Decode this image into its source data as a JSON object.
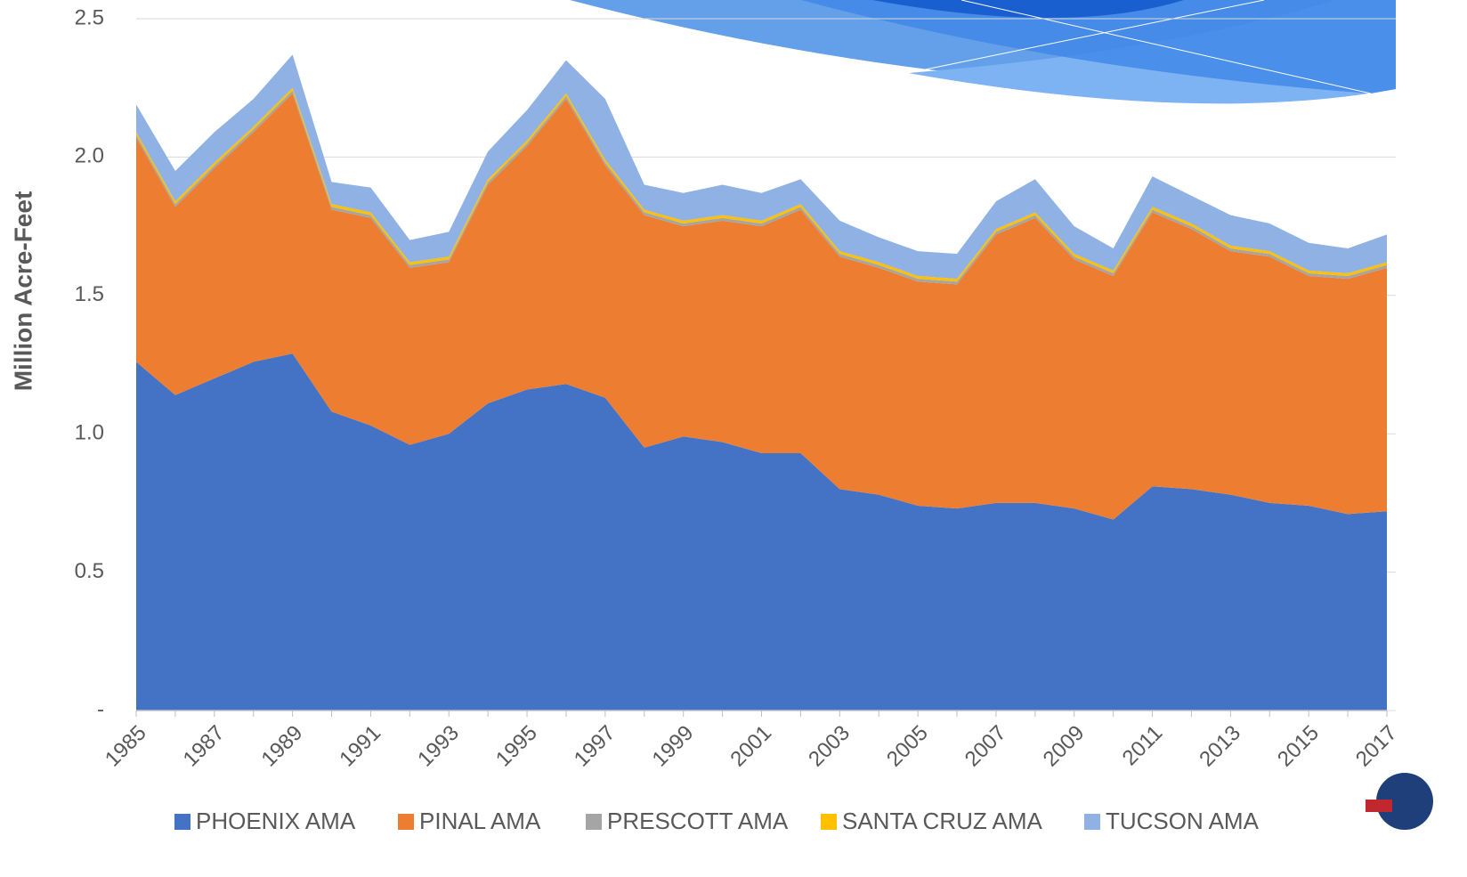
{
  "chart_data": {
    "type": "stacked-area",
    "y_label": "Million Acre-Feet",
    "categories": [
      "1985",
      null,
      "1987",
      null,
      "1989",
      null,
      "1991",
      null,
      "1993",
      null,
      "1995",
      null,
      "1997",
      null,
      "1999",
      null,
      "2001",
      null,
      "2003",
      null,
      "2005",
      null,
      "2007",
      null,
      "2009",
      null,
      "2011",
      null,
      "2013",
      null,
      "2015",
      null,
      "2017"
    ],
    "series": [
      {
        "name": "PHOENIX AMA",
        "color": "#4472c4",
        "values": [
          1.26,
          1.14,
          1.2,
          1.26,
          1.29,
          1.08,
          1.03,
          0.96,
          1.0,
          1.11,
          1.16,
          1.18,
          1.13,
          0.95,
          0.99,
          0.97,
          0.93,
          0.93,
          0.8,
          0.78,
          0.74,
          0.73,
          0.75,
          0.75,
          0.73,
          0.69,
          0.81,
          0.8,
          0.78,
          0.75,
          0.74,
          0.71,
          0.72
        ]
      },
      {
        "name": "PINAL AMA",
        "color": "#ed7d31",
        "values": [
          0.81,
          0.68,
          0.76,
          0.83,
          0.94,
          0.73,
          0.75,
          0.64,
          0.62,
          0.79,
          0.88,
          1.03,
          0.84,
          0.84,
          0.76,
          0.8,
          0.82,
          0.88,
          0.84,
          0.82,
          0.81,
          0.81,
          0.97,
          1.03,
          0.9,
          0.88,
          0.99,
          0.94,
          0.88,
          0.89,
          0.83,
          0.85,
          0.88
        ]
      },
      {
        "name": "PRESCOTT AMA",
        "color": "#a5a5a5",
        "values": [
          0.01,
          0.01,
          0.01,
          0.01,
          0.01,
          0.01,
          0.01,
          0.01,
          0.01,
          0.01,
          0.01,
          0.01,
          0.01,
          0.01,
          0.01,
          0.01,
          0.01,
          0.01,
          0.01,
          0.01,
          0.01,
          0.01,
          0.01,
          0.01,
          0.01,
          0.01,
          0.01,
          0.01,
          0.01,
          0.01,
          0.01,
          0.01,
          0.01
        ]
      },
      {
        "name": "SANTA CRUZ AMA",
        "color": "#ffc000",
        "values": [
          0.01,
          0.01,
          0.01,
          0.01,
          0.01,
          0.01,
          0.01,
          0.01,
          0.01,
          0.01,
          0.01,
          0.01,
          0.01,
          0.01,
          0.01,
          0.01,
          0.01,
          0.01,
          0.01,
          0.01,
          0.01,
          0.01,
          0.01,
          0.01,
          0.01,
          0.01,
          0.01,
          0.01,
          0.01,
          0.01,
          0.01,
          0.01,
          0.01
        ]
      },
      {
        "name": "TUCSON AMA",
        "color": "#8fb1e3",
        "values": [
          0.1,
          0.11,
          0.11,
          0.1,
          0.12,
          0.08,
          0.09,
          0.08,
          0.09,
          0.1,
          0.11,
          0.12,
          0.22,
          0.09,
          0.1,
          0.11,
          0.1,
          0.09,
          0.11,
          0.09,
          0.09,
          0.09,
          0.1,
          0.12,
          0.1,
          0.08,
          0.11,
          0.1,
          0.11,
          0.1,
          0.1,
          0.09,
          0.1
        ]
      }
    ],
    "ylim": [
      0,
      2.5
    ],
    "yticks": [
      {
        "value": 0,
        "label": "-"
      },
      0.5,
      {
        "value": 1,
        "label": "1.0"
      },
      1.5,
      {
        "value": 2,
        "label": "2.0"
      },
      2.5
    ],
    "grid": true
  }
}
